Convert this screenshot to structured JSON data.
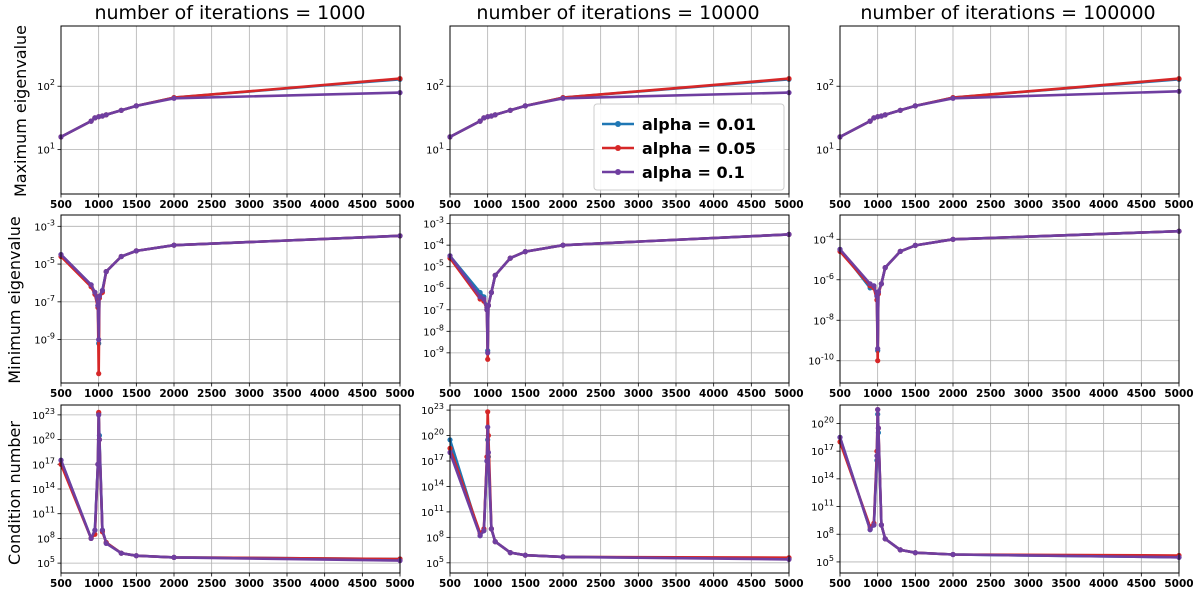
{
  "colors": {
    "alpha_001": "#1f77b4",
    "alpha_005": "#d62728",
    "alpha_01": "#6f3ea0",
    "grid": "#b0b0b0"
  },
  "columns": [
    {
      "title": "number of iterations = 1000"
    },
    {
      "title": "number of iterations = 10000"
    },
    {
      "title": "number of iterations = 100000"
    }
  ],
  "row_ylabels": [
    "Maximum eigenvalue",
    "Minimum eigenvalue",
    "Condition number"
  ],
  "legend": {
    "position": "center-right of top-middle panel",
    "entries": [
      {
        "label": "alpha = 0.01",
        "color": "#1f77b4"
      },
      {
        "label": "alpha = 0.05",
        "color": "#d62728"
      },
      {
        "label": "alpha = 0.1",
        "color": "#6f3ea0"
      }
    ]
  },
  "chart_data": [
    {
      "type": "line",
      "panel": "max-eig-1000",
      "title": "number of iterations = 1000",
      "ylabel": "Maximum eigenvalue",
      "yscale": "log",
      "xlim": [
        500,
        5000
      ],
      "ylim_log10": [
        0.3,
        2.95
      ],
      "xticks": [
        "500",
        "1000",
        "1500",
        "2000",
        "2500",
        "3000",
        "3500",
        "4000",
        "4500",
        "5000"
      ],
      "yticks": [
        {
          "exp": 1,
          "label": "10^1"
        },
        {
          "exp": 2,
          "label": "10^2"
        }
      ],
      "x": [
        500,
        900,
        950,
        1000,
        1050,
        1100,
        1300,
        1500,
        2000,
        5000
      ],
      "series": [
        {
          "name": "alpha = 0.01",
          "values": [
            1.2,
            1.45,
            1.5,
            1.52,
            1.53,
            1.55,
            1.62,
            1.69,
            1.82,
            2.11
          ]
        },
        {
          "name": "alpha = 0.05",
          "values": [
            1.2,
            1.45,
            1.5,
            1.52,
            1.53,
            1.55,
            1.62,
            1.69,
            1.82,
            2.12
          ]
        },
        {
          "name": "alpha = 0.1",
          "values": [
            1.2,
            1.45,
            1.5,
            1.52,
            1.53,
            1.55,
            1.62,
            1.69,
            1.81,
            1.9
          ]
        }
      ]
    },
    {
      "type": "line",
      "panel": "max-eig-10000",
      "title": "number of iterations = 10000",
      "ylabel": "",
      "yscale": "log",
      "xlim": [
        500,
        5000
      ],
      "ylim_log10": [
        0.3,
        2.95
      ],
      "xticks": [
        "500",
        "1000",
        "1500",
        "2000",
        "2500",
        "3000",
        "3500",
        "4000",
        "4500",
        "5000"
      ],
      "yticks": [
        {
          "exp": 1,
          "label": "10^1"
        },
        {
          "exp": 2,
          "label": "10^2"
        }
      ],
      "x": [
        500,
        900,
        950,
        1000,
        1050,
        1100,
        1300,
        1500,
        2000,
        5000
      ],
      "series": [
        {
          "name": "alpha = 0.01",
          "values": [
            1.2,
            1.45,
            1.5,
            1.52,
            1.53,
            1.55,
            1.62,
            1.69,
            1.82,
            2.11
          ]
        },
        {
          "name": "alpha = 0.05",
          "values": [
            1.2,
            1.45,
            1.5,
            1.52,
            1.53,
            1.55,
            1.62,
            1.69,
            1.82,
            2.12
          ]
        },
        {
          "name": "alpha = 0.1",
          "values": [
            1.2,
            1.45,
            1.5,
            1.52,
            1.53,
            1.55,
            1.62,
            1.69,
            1.81,
            1.9
          ]
        }
      ]
    },
    {
      "type": "line",
      "panel": "max-eig-100000",
      "title": "number of iterations = 100000",
      "ylabel": "",
      "yscale": "log",
      "xlim": [
        500,
        5000
      ],
      "ylim_log10": [
        0.3,
        2.95
      ],
      "xticks": [
        "500",
        "1000",
        "1500",
        "2000",
        "2500",
        "3000",
        "3500",
        "4000",
        "4500",
        "5000"
      ],
      "yticks": [
        {
          "exp": 1,
          "label": "10^1"
        },
        {
          "exp": 2,
          "label": "10^2"
        }
      ],
      "x": [
        500,
        900,
        950,
        1000,
        1050,
        1100,
        1300,
        1500,
        2000,
        5000
      ],
      "series": [
        {
          "name": "alpha = 0.01",
          "values": [
            1.2,
            1.45,
            1.5,
            1.52,
            1.53,
            1.55,
            1.62,
            1.69,
            1.82,
            2.11
          ]
        },
        {
          "name": "alpha = 0.05",
          "values": [
            1.2,
            1.45,
            1.5,
            1.52,
            1.53,
            1.55,
            1.62,
            1.69,
            1.82,
            2.12
          ]
        },
        {
          "name": "alpha = 0.1",
          "values": [
            1.2,
            1.45,
            1.5,
            1.52,
            1.53,
            1.55,
            1.62,
            1.69,
            1.81,
            1.92
          ]
        }
      ]
    },
    {
      "type": "line",
      "panel": "min-eig-1000",
      "title": "",
      "ylabel": "Minimum eigenvalue",
      "yscale": "log",
      "xlim": [
        500,
        5000
      ],
      "ylim_log10": [
        -11.3,
        -2.4
      ],
      "xticks": [
        "500",
        "1000",
        "1500",
        "2000",
        "2500",
        "3000",
        "3500",
        "4000",
        "4500",
        "5000"
      ],
      "yticks": [
        {
          "exp": -9,
          "label": "10^-9"
        },
        {
          "exp": -7,
          "label": "10^-7"
        },
        {
          "exp": -5,
          "label": "10^-5"
        },
        {
          "exp": -3,
          "label": "10^-3"
        }
      ],
      "x": [
        500,
        900,
        950,
        990,
        1000,
        1010,
        1050,
        1100,
        1300,
        1500,
        2000,
        5000
      ],
      "series": [
        {
          "name": "alpha = 0.01",
          "values": [
            -4.5,
            -6.1,
            -6.5,
            -7.2,
            -9.2,
            -6.7,
            -6.4,
            -5.4,
            -4.6,
            -4.3,
            -4.0,
            -3.5
          ]
        },
        {
          "name": "alpha = 0.05",
          "values": [
            -4.6,
            -6.2,
            -6.6,
            -7.3,
            -10.8,
            -6.8,
            -6.5,
            -5.4,
            -4.6,
            -4.3,
            -4.0,
            -3.5
          ]
        },
        {
          "name": "alpha = 0.1",
          "values": [
            -4.5,
            -6.1,
            -6.5,
            -7.2,
            -9.0,
            -6.7,
            -6.4,
            -5.4,
            -4.6,
            -4.3,
            -4.0,
            -3.5
          ]
        }
      ]
    },
    {
      "type": "line",
      "panel": "min-eig-10000",
      "title": "",
      "ylabel": "",
      "yscale": "log",
      "xlim": [
        500,
        5000
      ],
      "ylim_log10": [
        -10.4,
        -2.6
      ],
      "xticks": [
        "500",
        "1000",
        "1500",
        "2000",
        "2500",
        "3000",
        "3500",
        "4000",
        "4500",
        "5000"
      ],
      "yticks": [
        {
          "exp": -9,
          "label": "10^-9"
        },
        {
          "exp": -8,
          "label": "10^-8"
        },
        {
          "exp": -7,
          "label": "10^-7"
        },
        {
          "exp": -6,
          "label": "10^-6"
        },
        {
          "exp": -5,
          "label": "10^-5"
        },
        {
          "exp": -4,
          "label": "10^-4"
        },
        {
          "exp": -3,
          "label": "10^-3"
        }
      ],
      "x": [
        500,
        900,
        950,
        990,
        1000,
        1010,
        1050,
        1100,
        1300,
        1500,
        2000,
        5000
      ],
      "series": [
        {
          "name": "alpha = 0.01",
          "values": [
            -4.5,
            -6.2,
            -6.4,
            -6.9,
            -8.9,
            -6.8,
            -6.2,
            -5.4,
            -4.6,
            -4.3,
            -4.0,
            -3.5
          ]
        },
        {
          "name": "alpha = 0.05",
          "values": [
            -4.6,
            -6.5,
            -6.6,
            -7.0,
            -9.3,
            -6.8,
            -6.2,
            -5.4,
            -4.6,
            -4.3,
            -4.0,
            -3.5
          ]
        },
        {
          "name": "alpha = 0.1",
          "values": [
            -4.5,
            -6.4,
            -6.5,
            -7.0,
            -9.0,
            -6.8,
            -6.2,
            -5.4,
            -4.6,
            -4.3,
            -4.0,
            -3.5
          ]
        }
      ]
    },
    {
      "type": "line",
      "panel": "min-eig-100000",
      "title": "",
      "ylabel": "",
      "yscale": "log",
      "xlim": [
        500,
        5000
      ],
      "ylim_log10": [
        -11.1,
        -2.8
      ],
      "xticks": [
        "500",
        "1000",
        "1500",
        "2000",
        "2500",
        "3000",
        "3500",
        "4000",
        "4500",
        "5000"
      ],
      "yticks": [
        {
          "exp": -10,
          "label": "10^-10"
        },
        {
          "exp": -8,
          "label": "10^-8"
        },
        {
          "exp": -6,
          "label": "10^-6"
        },
        {
          "exp": -4,
          "label": "10^-4"
        }
      ],
      "x": [
        500,
        900,
        950,
        990,
        1000,
        1010,
        1050,
        1100,
        1300,
        1500,
        2000,
        5000
      ],
      "series": [
        {
          "name": "alpha = 0.01",
          "values": [
            -4.5,
            -6.4,
            -6.3,
            -6.8,
            -9.5,
            -6.6,
            -6.2,
            -5.4,
            -4.6,
            -4.3,
            -4.0,
            -3.6
          ]
        },
        {
          "name": "alpha = 0.05",
          "values": [
            -4.6,
            -6.3,
            -6.4,
            -7.0,
            -10.0,
            -6.7,
            -6.2,
            -5.4,
            -4.6,
            -4.3,
            -4.0,
            -3.6
          ]
        },
        {
          "name": "alpha = 0.1",
          "values": [
            -4.5,
            -6.2,
            -6.3,
            -6.8,
            -9.4,
            -6.6,
            -6.2,
            -5.4,
            -4.6,
            -4.3,
            -4.0,
            -3.6
          ]
        }
      ]
    },
    {
      "type": "line",
      "panel": "cond-1000",
      "title": "",
      "ylabel": "Condition number",
      "yscale": "log",
      "xlim": [
        500,
        5000
      ],
      "ylim_log10": [
        3.8,
        24.2
      ],
      "xticks": [
        "500",
        "1000",
        "1500",
        "2000",
        "2500",
        "3000",
        "3500",
        "4000",
        "4500",
        "5000"
      ],
      "yticks": [
        {
          "exp": 5,
          "label": "10^5"
        },
        {
          "exp": 8,
          "label": "10^8"
        },
        {
          "exp": 11,
          "label": "10^11"
        },
        {
          "exp": 14,
          "label": "10^14"
        },
        {
          "exp": 17,
          "label": "10^17"
        },
        {
          "exp": 20,
          "label": "10^20"
        },
        {
          "exp": 23,
          "label": "10^23"
        }
      ],
      "x": [
        500,
        900,
        950,
        990,
        1000,
        1010,
        1050,
        1100,
        1300,
        1500,
        2000,
        5000
      ],
      "series": [
        {
          "name": "alpha = 0.01",
          "values": [
            17.5,
            8.0,
            9.0,
            17.0,
            23.2,
            20.5,
            9.0,
            7.5,
            6.2,
            5.9,
            5.7,
            5.5
          ]
        },
        {
          "name": "alpha = 0.05",
          "values": [
            17.0,
            8.0,
            8.5,
            17.0,
            23.3,
            20.0,
            8.8,
            7.5,
            6.2,
            5.9,
            5.7,
            5.5
          ]
        },
        {
          "name": "alpha = 0.1",
          "values": [
            17.5,
            8.0,
            9.0,
            17.0,
            23.0,
            20.0,
            9.0,
            7.4,
            6.2,
            5.9,
            5.7,
            5.3
          ]
        }
      ]
    },
    {
      "type": "line",
      "panel": "cond-10000",
      "title": "",
      "ylabel": "",
      "yscale": "log",
      "xlim": [
        500,
        5000
      ],
      "ylim_log10": [
        3.8,
        23.6
      ],
      "xticks": [
        "500",
        "1000",
        "1500",
        "2000",
        "2500",
        "3000",
        "3500",
        "4000",
        "4500",
        "5000"
      ],
      "yticks": [
        {
          "exp": 5,
          "label": "10^5"
        },
        {
          "exp": 8,
          "label": "10^8"
        },
        {
          "exp": 11,
          "label": "10^11"
        },
        {
          "exp": 14,
          "label": "10^14"
        },
        {
          "exp": 17,
          "label": "10^17"
        },
        {
          "exp": 20,
          "label": "10^20"
        },
        {
          "exp": 23,
          "label": "10^23"
        }
      ],
      "x": [
        500,
        900,
        950,
        990,
        1000,
        1010,
        1050,
        1100,
        1300,
        1500,
        2000,
        5000
      ],
      "series": [
        {
          "name": "alpha = 0.01",
          "values": [
            19.5,
            8.2,
            8.8,
            17.0,
            19.5,
            17.5,
            9.0,
            7.5,
            6.2,
            5.9,
            5.7,
            5.5
          ]
        },
        {
          "name": "alpha = 0.05",
          "values": [
            18.5,
            8.5,
            9.0,
            17.5,
            22.8,
            20.0,
            9.0,
            7.5,
            6.2,
            5.9,
            5.7,
            5.6
          ]
        },
        {
          "name": "alpha = 0.1",
          "values": [
            18.0,
            8.2,
            8.8,
            17.0,
            21.0,
            18.0,
            9.0,
            7.5,
            6.2,
            5.9,
            5.7,
            5.4
          ]
        }
      ]
    },
    {
      "type": "line",
      "panel": "cond-100000",
      "title": "",
      "ylabel": "",
      "yscale": "log",
      "xlim": [
        500,
        5000
      ],
      "ylim_log10": [
        3.8,
        22.0
      ],
      "xticks": [
        "500",
        "1000",
        "1500",
        "2000",
        "2500",
        "3000",
        "3500",
        "4000",
        "4500",
        "5000"
      ],
      "yticks": [
        {
          "exp": 5,
          "label": "10^5"
        },
        {
          "exp": 8,
          "label": "10^8"
        },
        {
          "exp": 11,
          "label": "10^11"
        },
        {
          "exp": 14,
          "label": "10^14"
        },
        {
          "exp": 17,
          "label": "10^17"
        },
        {
          "exp": 20,
          "label": "10^20"
        }
      ],
      "x": [
        500,
        900,
        950,
        990,
        1000,
        1010,
        1050,
        1100,
        1300,
        1500,
        2000,
        5000
      ],
      "series": [
        {
          "name": "alpha = 0.01",
          "values": [
            18.5,
            8.5,
            9.0,
            16.0,
            21.0,
            19.0,
            9.0,
            7.5,
            6.3,
            6.0,
            5.8,
            5.5
          ]
        },
        {
          "name": "alpha = 0.05",
          "values": [
            18.0,
            8.8,
            9.2,
            17.0,
            21.5,
            19.5,
            9.0,
            7.5,
            6.3,
            6.0,
            5.8,
            5.7
          ]
        },
        {
          "name": "alpha = 0.1",
          "values": [
            18.5,
            8.5,
            9.0,
            16.5,
            21.5,
            19.5,
            9.0,
            7.5,
            6.3,
            6.0,
            5.8,
            5.5
          ]
        }
      ]
    }
  ]
}
